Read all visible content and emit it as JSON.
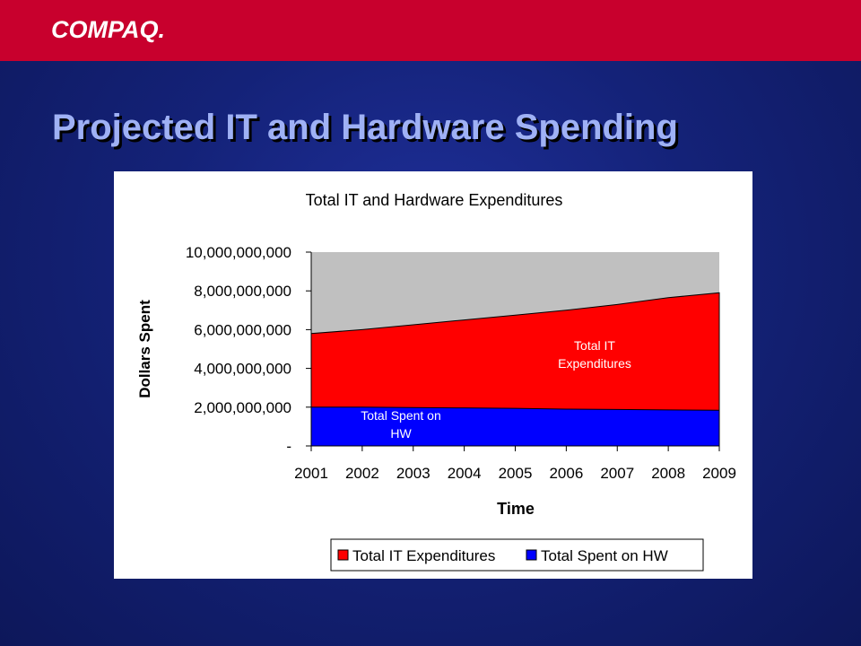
{
  "brand": {
    "logo_text": "COMPAQ."
  },
  "slide": {
    "title": "Projected IT and Hardware Spending"
  },
  "colors": {
    "brand_bar": "#c8002d",
    "background": "#142278",
    "title": "#9fb1f5",
    "total_it": "#ff0000",
    "hw": "#0000ff",
    "plot_area": "#c0c0c0"
  },
  "chart_data": {
    "type": "area",
    "title": "Total IT and Hardware Expenditures",
    "xlabel": "Time",
    "ylabel": "Dollars Spent",
    "x": [
      "2001",
      "2002",
      "2003",
      "2004",
      "2005",
      "2006",
      "2007",
      "2008",
      "2009"
    ],
    "ylim": [
      0,
      10000000000
    ],
    "yticks": [
      0,
      2000000000,
      4000000000,
      6000000000,
      8000000000,
      10000000000
    ],
    "ytick_labels": [
      "-",
      "2,000,000,000",
      "4,000,000,000",
      "6,000,000,000",
      "8,000,000,000",
      "10,000,000,000"
    ],
    "series": [
      {
        "name": "Total IT Expenditures",
        "color": "#ff0000",
        "values": [
          5800000000,
          6000000000,
          6250000000,
          6500000000,
          6750000000,
          7000000000,
          7300000000,
          7650000000,
          7900000000
        ]
      },
      {
        "name": "Total Spent on HW",
        "color": "#0000ff",
        "values": [
          2000000000,
          2000000000,
          1980000000,
          1960000000,
          1940000000,
          1900000000,
          1880000000,
          1860000000,
          1840000000
        ]
      }
    ],
    "annotations": [
      {
        "lines": [
          "Total IT",
          "Expenditures"
        ],
        "series": "Total IT Expenditures"
      },
      {
        "lines": [
          "Total  Spent on",
          "HW"
        ],
        "series": "Total Spent on HW"
      }
    ],
    "legend": "bottom-right",
    "grid": false
  }
}
